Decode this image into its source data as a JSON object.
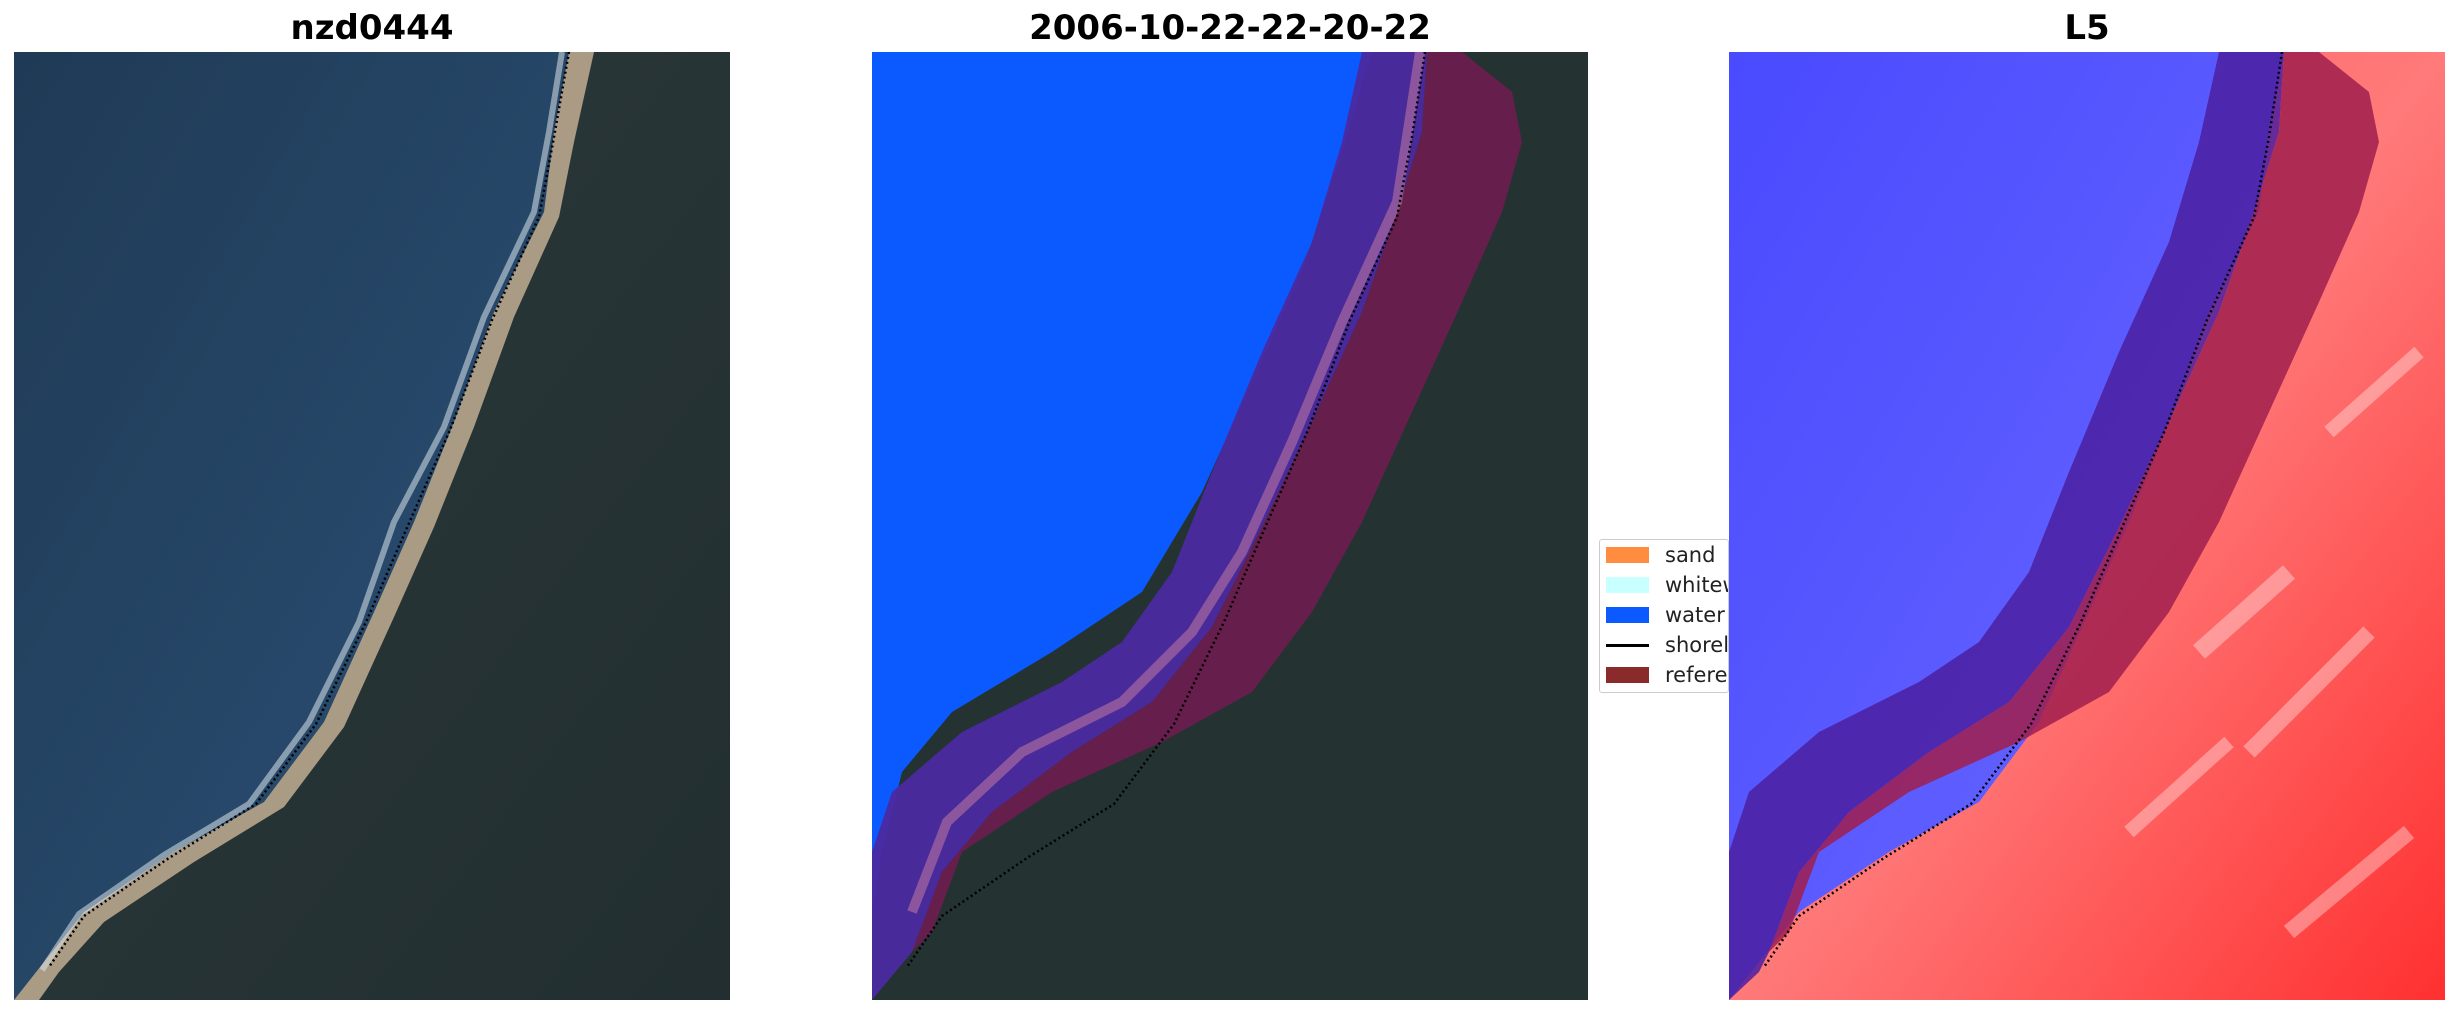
{
  "panels": [
    {
      "title": "nzd0444"
    },
    {
      "title": "2006-10-22-22-20-22"
    },
    {
      "title": "L5"
    }
  ],
  "legend": {
    "items": [
      {
        "label": "sand",
        "color": "#ff8c3f",
        "kind": "patch"
      },
      {
        "label": "whitewater",
        "color": "#c8ffff",
        "kind": "patch"
      },
      {
        "label": "water",
        "color": "#0a5aff",
        "kind": "patch"
      },
      {
        "label": "shoreline",
        "color": "#000000",
        "kind": "line"
      },
      {
        "label": "reference",
        "color": "#8b2a2a",
        "kind": "patch"
      }
    ]
  },
  "colors": {
    "sea": "#223d58",
    "land": "#2b3a3a",
    "beach": "#c2ad93",
    "water_class": "#0a5aff",
    "buffer": "#7a1e4a",
    "index_negative": "#2a2aff",
    "index_positive": "#ff2a2a"
  }
}
